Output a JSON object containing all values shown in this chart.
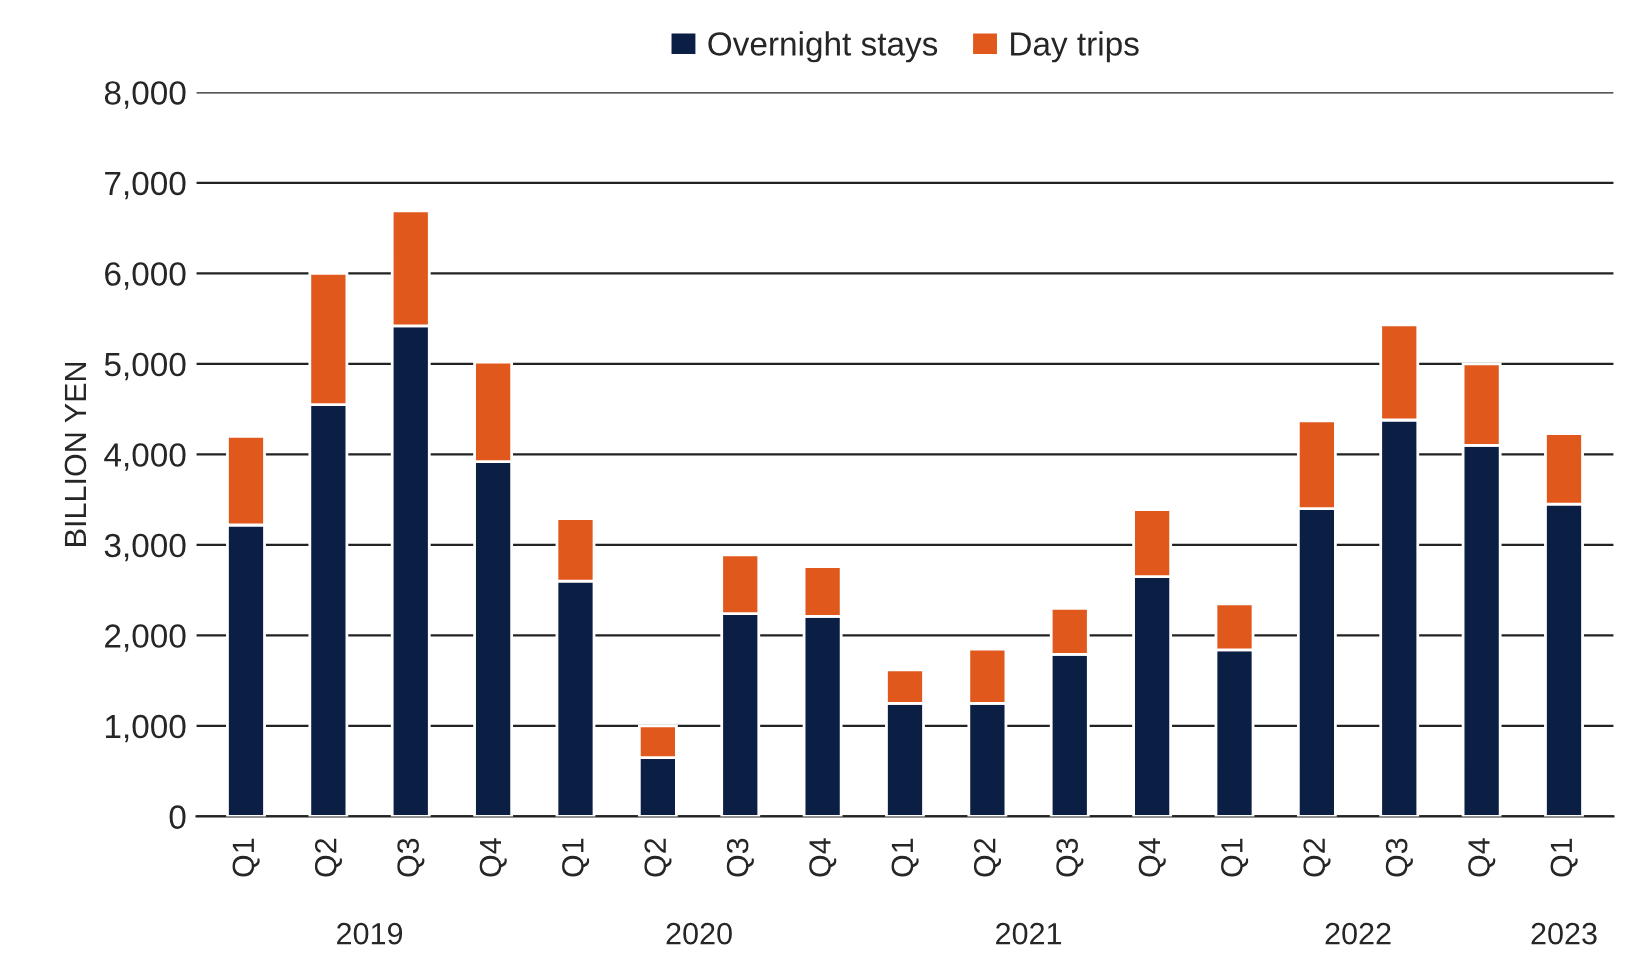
{
  "chart_data": {
    "type": "bar",
    "stacked": true,
    "ylabel": "BILLION YEN",
    "categories": [
      "Q1",
      "Q2",
      "Q3",
      "Q4",
      "Q1",
      "Q2",
      "Q3",
      "Q4",
      "Q1",
      "Q2",
      "Q3",
      "Q4",
      "Q1",
      "Q2",
      "Q3",
      "Q4",
      "Q1"
    ],
    "series": [
      {
        "name": "Overnight stays",
        "color": "#0b1f45",
        "values": [
          3220,
          4550,
          5420,
          3920,
          2600,
          650,
          2240,
          2210,
          1250,
          1250,
          1790,
          2650,
          1840,
          3400,
          4380,
          4100,
          3450
        ]
      },
      {
        "name": "Day trips",
        "color": "#e0581c",
        "values": [
          980,
          1450,
          1270,
          1100,
          690,
          350,
          650,
          550,
          370,
          600,
          510,
          740,
          510,
          970,
          1050,
          900,
          780
        ]
      }
    ],
    "annotations": [
      "2019",
      "2020",
      "2021",
      "2022",
      "2023"
    ],
    "ylim": [
      0,
      8000
    ],
    "yticks": [
      0,
      {
        "value": 1000,
        "label": "1,000"
      },
      {
        "value": 2000,
        "label": "2,000"
      },
      {
        "value": 3000,
        "label": "3,000"
      },
      {
        "value": 4000,
        "label": "4,000"
      },
      {
        "value": 5000,
        "label": "5,000"
      },
      {
        "value": 6000,
        "label": "6,000"
      },
      {
        "value": 7000,
        "label": "7,000"
      },
      {
        "value": 8000,
        "label": "8,000"
      }
    ],
    "grid": "y",
    "legend": "top"
  }
}
